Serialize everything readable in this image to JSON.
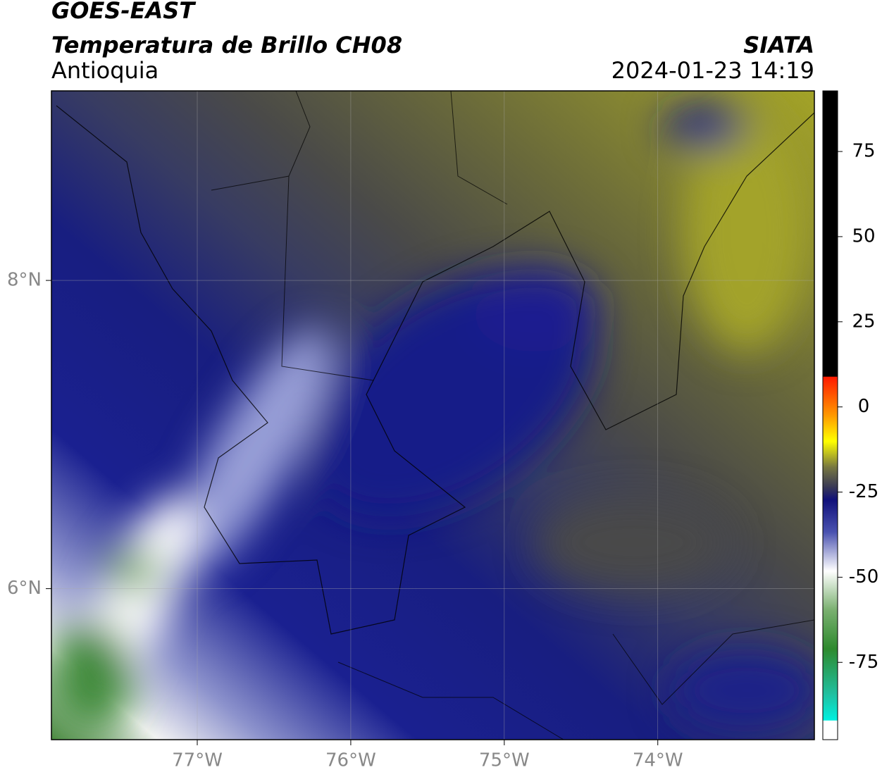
{
  "header": {
    "satellite": "GOES-EAST",
    "product": "Temperatura de Brillo CH08",
    "region": "Antioquia",
    "agency": "SIATA",
    "datetime": "2024-01-23 14:19"
  },
  "map": {
    "xlim": [
      -77.95,
      -72.98
    ],
    "ylim": [
      5.02,
      9.23
    ],
    "xticks": [
      {
        "value": -77,
        "label": "77°W"
      },
      {
        "value": -76,
        "label": "76°W"
      },
      {
        "value": -75,
        "label": "75°W"
      },
      {
        "value": -74,
        "label": "74°W"
      }
    ],
    "yticks": [
      {
        "value": 6,
        "label": "6°N"
      },
      {
        "value": 8,
        "label": "8°N"
      }
    ],
    "grid": true
  },
  "colorbar": {
    "lim": [
      -97.7,
      92.8
    ],
    "ticks": [
      -75,
      -50,
      -25,
      0,
      25,
      50,
      75
    ]
  }
}
